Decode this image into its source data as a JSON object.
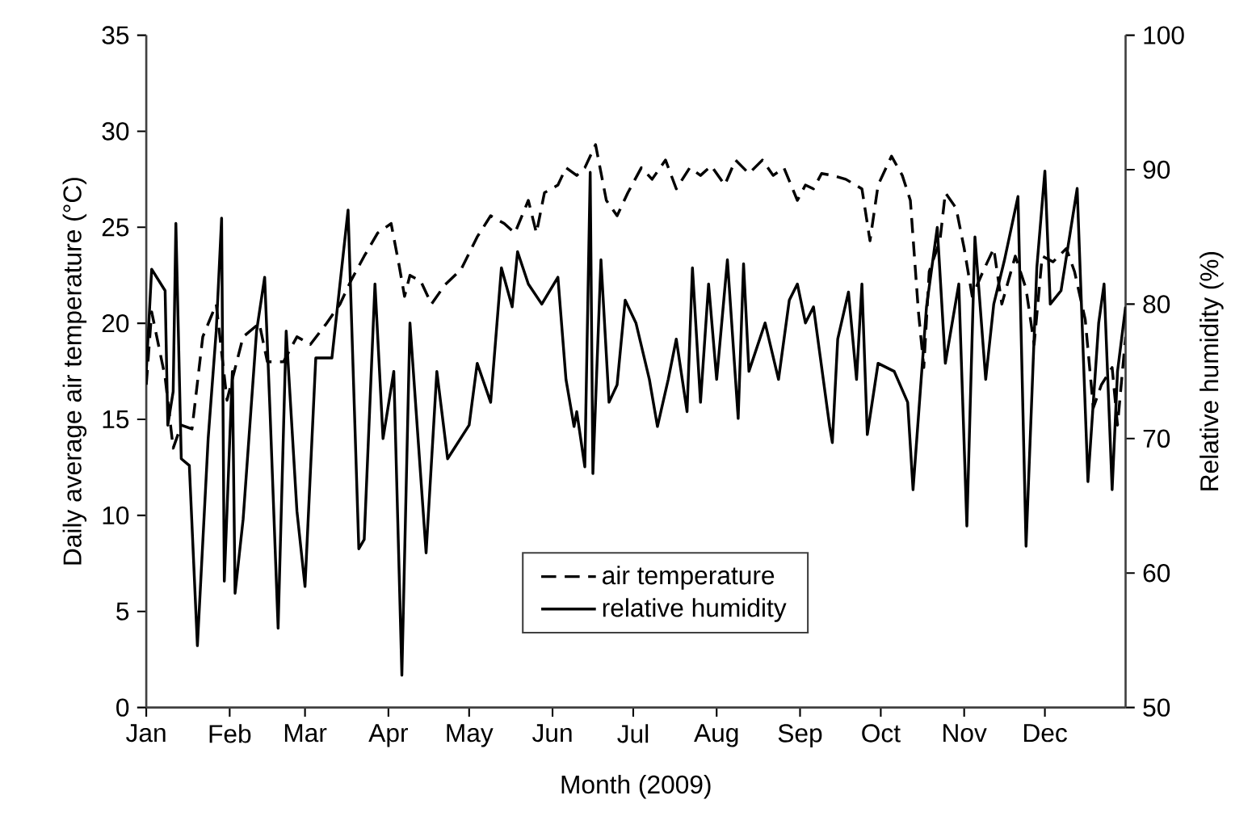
{
  "chart_data": {
    "type": "line",
    "xlabel": "Month (2009)",
    "ylabel": "Daily average air temperature (°C)",
    "y2label": "Relative humidity (%)",
    "xlim": [
      "2009-01-01",
      "2009-12-31"
    ],
    "xticks": [
      {
        "value": "2009-01-01",
        "label": "Jan"
      },
      {
        "value": "2009-02-01",
        "label": "Feb"
      },
      {
        "value": "2009-03-01",
        "label": "Mar"
      },
      {
        "value": "2009-04-01",
        "label": "Apr"
      },
      {
        "value": "2009-05-01",
        "label": "May"
      },
      {
        "value": "2009-06-01",
        "label": "Jun"
      },
      {
        "value": "2009-07-01",
        "label": "Jul"
      },
      {
        "value": "2009-08-01",
        "label": "Aug"
      },
      {
        "value": "2009-09-01",
        "label": "Sep"
      },
      {
        "value": "2009-10-01",
        "label": "Oct"
      },
      {
        "value": "2009-11-01",
        "label": "Nov"
      },
      {
        "value": "2009-12-01",
        "label": "Dec"
      }
    ],
    "ylim": [
      0,
      35
    ],
    "yticks": [
      0,
      5,
      10,
      15,
      20,
      25,
      30,
      35
    ],
    "y2lim": [
      50,
      100
    ],
    "y2ticks": [
      50,
      60,
      70,
      80,
      90,
      100
    ],
    "legend": "bottom",
    "series": [
      {
        "name": "air temperature",
        "color": "#000000",
        "line_style": "dashed",
        "axis": "y",
        "x": [
          "2009-01-01",
          "2009-01-03",
          "2009-01-08",
          "2009-01-11",
          "2009-01-14",
          "2009-01-18",
          "2009-01-22",
          "2009-01-27",
          "2009-01-31",
          "2009-02-06",
          "2009-02-12",
          "2009-02-15",
          "2009-02-21",
          "2009-02-26",
          "2009-03-03",
          "2009-03-09",
          "2009-03-14",
          "2009-03-18",
          "2009-03-23",
          "2009-03-28",
          "2009-04-02",
          "2009-04-05",
          "2009-04-07",
          "2009-04-09",
          "2009-04-13",
          "2009-04-17",
          "2009-04-22",
          "2009-04-28",
          "2009-05-04",
          "2009-05-09",
          "2009-05-14",
          "2009-05-18",
          "2009-05-23",
          "2009-05-26",
          "2009-05-29",
          "2009-06-03",
          "2009-06-06",
          "2009-06-10",
          "2009-06-13",
          "2009-06-17",
          "2009-06-21",
          "2009-06-25",
          "2009-06-29",
          "2009-07-04",
          "2009-07-08",
          "2009-07-13",
          "2009-07-17",
          "2009-07-22",
          "2009-07-26",
          "2009-07-30",
          "2009-08-04",
          "2009-08-08",
          "2009-08-13",
          "2009-08-18",
          "2009-08-22",
          "2009-08-26",
          "2009-08-31",
          "2009-09-03",
          "2009-09-06",
          "2009-09-09",
          "2009-09-13",
          "2009-09-18",
          "2009-09-24",
          "2009-09-27",
          "2009-09-30",
          "2009-10-05",
          "2009-10-09",
          "2009-10-12",
          "2009-10-15",
          "2009-10-17",
          "2009-10-19",
          "2009-10-23",
          "2009-10-25",
          "2009-10-29",
          "2009-11-01",
          "2009-11-04",
          "2009-11-08",
          "2009-11-12",
          "2009-11-15",
          "2009-11-20",
          "2009-11-24",
          "2009-11-27",
          "2009-11-30",
          "2009-12-04",
          "2009-12-09",
          "2009-12-12",
          "2009-12-16",
          "2009-12-19",
          "2009-12-22",
          "2009-12-26",
          "2009-12-28",
          "2009-12-31"
        ],
        "values": [
          16.8,
          20.6,
          17.2,
          13.5,
          14.7,
          14.5,
          19.3,
          21,
          16,
          19.3,
          20,
          18,
          18,
          19.3,
          18.9,
          20,
          21,
          22.2,
          23.5,
          24.7,
          25.2,
          23,
          21.4,
          22.5,
          22.2,
          21,
          22,
          22.8,
          24.5,
          25.6,
          25.2,
          24.7,
          26.4,
          24.7,
          26.8,
          27.2,
          28.1,
          27.7,
          28.1,
          29.3,
          26.4,
          25.6,
          26.8,
          28.1,
          27.5,
          28.5,
          27,
          28.1,
          27.7,
          28.2,
          27.2,
          28.5,
          27.8,
          28.5,
          27.7,
          28.1,
          26.4,
          27.2,
          27,
          27.8,
          27.7,
          27.5,
          27,
          24.3,
          27.2,
          28.7,
          27.7,
          26.4,
          20.6,
          17.7,
          22.7,
          24.3,
          26.8,
          26,
          23.9,
          21.4,
          22.7,
          23.9,
          21,
          23.5,
          21.8,
          18.9,
          23.5,
          23.2,
          23.9,
          22.7,
          20.2,
          15.6,
          16.8,
          17.7,
          14.7,
          19.3
        ]
      },
      {
        "name": "relative humidity",
        "color": "#000000",
        "line_style": "solid",
        "axis": "y2",
        "x": [
          "2009-01-01",
          "2009-01-03",
          "2009-01-08",
          "2009-01-09",
          "2009-01-11",
          "2009-01-12",
          "2009-01-14",
          "2009-01-17",
          "2009-01-20",
          "2009-01-24",
          "2009-01-27",
          "2009-01-29",
          "2009-01-30",
          "2009-02-02",
          "2009-02-03",
          "2009-02-06",
          "2009-02-11",
          "2009-02-14",
          "2009-02-16",
          "2009-02-19",
          "2009-02-22",
          "2009-02-26",
          "2009-03-01",
          "2009-03-05",
          "2009-03-11",
          "2009-03-17",
          "2009-03-21",
          "2009-03-23",
          "2009-03-27",
          "2009-03-30",
          "2009-04-03",
          "2009-04-06",
          "2009-04-09",
          "2009-04-15",
          "2009-04-19",
          "2009-04-23",
          "2009-05-01",
          "2009-05-04",
          "2009-05-09",
          "2009-05-13",
          "2009-05-17",
          "2009-05-19",
          "2009-05-23",
          "2009-05-28",
          "2009-06-03",
          "2009-06-06",
          "2009-06-09",
          "2009-06-10",
          "2009-06-13",
          "2009-06-15",
          "2009-06-16",
          "2009-06-19",
          "2009-06-22",
          "2009-06-25",
          "2009-06-28",
          "2009-07-02",
          "2009-07-07",
          "2009-07-10",
          "2009-07-14",
          "2009-07-17",
          "2009-07-21",
          "2009-07-23",
          "2009-07-26",
          "2009-07-29",
          "2009-08-01",
          "2009-08-05",
          "2009-08-09",
          "2009-08-11",
          "2009-08-13",
          "2009-08-19",
          "2009-08-24",
          "2009-08-28",
          "2009-08-31",
          "2009-09-03",
          "2009-09-06",
          "2009-09-12",
          "2009-09-13",
          "2009-09-15",
          "2009-09-19",
          "2009-09-22",
          "2009-09-24",
          "2009-09-26",
          "2009-09-30",
          "2009-10-06",
          "2009-10-11",
          "2009-10-13",
          "2009-10-18",
          "2009-10-22",
          "2009-10-25",
          "2009-10-30",
          "2009-11-02",
          "2009-11-05",
          "2009-11-09",
          "2009-11-12",
          "2009-11-16",
          "2009-11-21",
          "2009-11-24",
          "2009-11-28",
          "2009-12-01",
          "2009-12-03",
          "2009-12-07",
          "2009-12-13",
          "2009-12-17",
          "2009-12-21",
          "2009-12-23",
          "2009-12-26",
          "2009-12-28",
          "2009-12-31"
        ],
        "values": [
          75,
          82.6,
          81,
          71,
          73.5,
          86,
          68.5,
          68,
          54.6,
          70,
          78,
          86.4,
          59.4,
          75,
          58.5,
          64,
          78,
          82,
          72,
          55.9,
          78,
          64.6,
          59,
          76,
          76,
          87,
          61.8,
          62.5,
          81.5,
          70,
          75,
          52.4,
          78.6,
          61.5,
          75,
          68.5,
          71,
          75.6,
          72.7,
          82.7,
          79.8,
          83.9,
          81.5,
          80,
          82,
          74.4,
          70.9,
          72,
          67.9,
          89.8,
          67.4,
          83.3,
          72.7,
          74,
          80.3,
          78.6,
          74.4,
          70.9,
          74.4,
          77.4,
          72,
          82.7,
          72.7,
          81.5,
          74.4,
          83.3,
          71.5,
          83,
          75,
          78.6,
          74.4,
          80.3,
          81.5,
          78.6,
          79.8,
          70.9,
          69.7,
          77.4,
          80.9,
          74.4,
          81.5,
          70.3,
          75.6,
          75,
          72.7,
          66.2,
          79.8,
          85.7,
          75.6,
          81.5,
          63.5,
          85,
          74.4,
          80,
          83.3,
          88,
          62,
          82.7,
          89.9,
          80,
          81,
          88.6,
          66.8,
          78.6,
          81.5,
          66.2,
          75,
          79.8
        ]
      }
    ]
  }
}
